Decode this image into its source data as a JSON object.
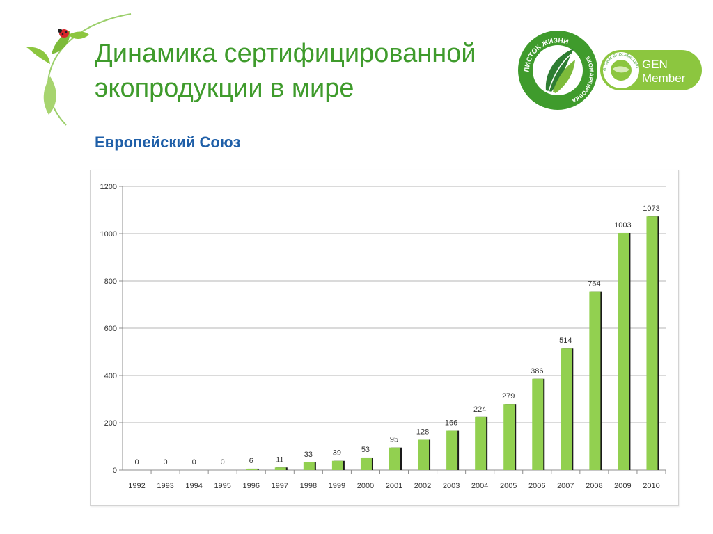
{
  "slide": {
    "title": "Динамика сертифицированной экопродукции в мире",
    "subtitle": "Европейский Союз"
  },
  "logos": {
    "leaf_top_text": "ЛИСТОК ЖИЗНИ",
    "leaf_right_text": "ЭКОМАРКИРОВКА",
    "gen_ring_text": "GLOBAL ECOLABELLING NETWORK",
    "gen_line1": "GEN",
    "gen_line2": "Member"
  },
  "colors": {
    "title": "#3f9b2c",
    "subtitle": "#1f5fa8",
    "bar_fill": "#92d050",
    "bar_shadow": "#1a1a1a",
    "logo_green": "#3f9b2c",
    "logo_light": "#8cc63f"
  },
  "chart_data": {
    "type": "bar",
    "categories": [
      "1992",
      "1993",
      "1994",
      "1995",
      "1996",
      "1997",
      "1998",
      "1999",
      "2000",
      "2001",
      "2002",
      "2003",
      "2004",
      "2005",
      "2006",
      "2007",
      "2008",
      "2009",
      "2010"
    ],
    "values": [
      0,
      0,
      0,
      0,
      6,
      11,
      33,
      39,
      53,
      95,
      128,
      166,
      224,
      279,
      386,
      514,
      754,
      1003,
      1073
    ],
    "data_labels": [
      "0",
      "0",
      "0",
      "0",
      "6",
      "11",
      "33",
      "39",
      "53",
      "95",
      "128",
      "166",
      "224",
      "279",
      "386",
      "514",
      "754",
      "1003",
      "1073"
    ],
    "y_ticks": [
      "0",
      "200",
      "400",
      "600",
      "800",
      "1000",
      "1200"
    ],
    "ylim": [
      0,
      1200
    ],
    "grid": true,
    "legend": false,
    "title": "",
    "xlabel": "",
    "ylabel": ""
  }
}
